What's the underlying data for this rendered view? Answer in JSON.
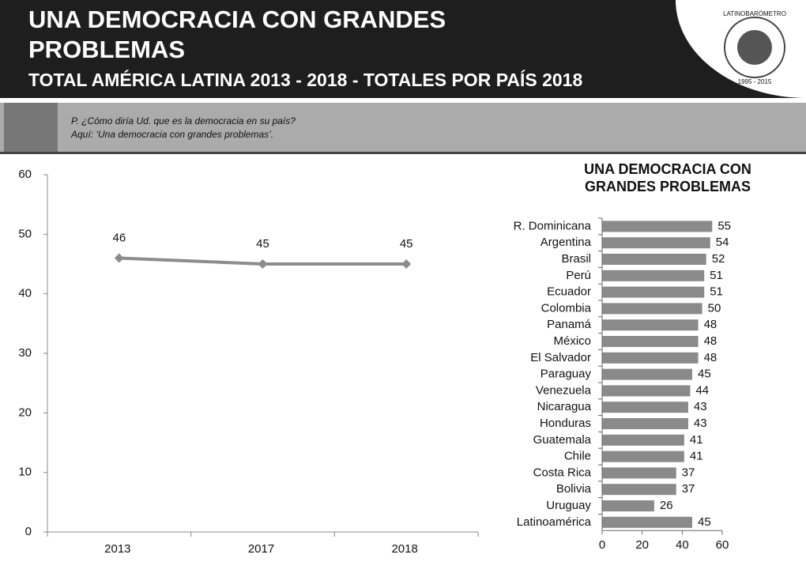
{
  "header": {
    "title": "UNA DEMOCRACIA CON GRANDES PROBLEMAS",
    "subtitle": "TOTAL AMÉRICA LATINA 2013 - 2018 - TOTALES POR PAÍS  2018",
    "logo": "LATINOBARÓMETRO",
    "logo_years": "1995 - 2015"
  },
  "question": [
    "P. ¿Cómo diría Ud. que es la democracia en su país?",
    "Aquí: ‘Una democracia con grandes problemas’."
  ],
  "chart_data": [
    {
      "type": "line",
      "categories": [
        "2013",
        "2017",
        "2018"
      ],
      "values": [
        46,
        45,
        45
      ],
      "color": "#8c8c8c",
      "ylim": [
        0,
        60
      ],
      "yticks": [
        0,
        10,
        20,
        30,
        40,
        50,
        60
      ]
    },
    {
      "type": "hbar",
      "title": "UNA DEMOCRACIA CON GRANDES PROBLEMAS",
      "categories": [
        "R. Dominicana",
        "Argentina",
        "Brasil",
        "Perú",
        "Ecuador",
        "Colombia",
        "Panamá",
        "México",
        "El Salvador",
        "Paraguay",
        "Venezuela",
        "Nicaragua",
        "Honduras",
        "Guatemala",
        "Chile",
        "Costa Rica",
        "Bolivia",
        "Uruguay",
        "Latinoamérica"
      ],
      "values": [
        55,
        54,
        52,
        51,
        51,
        50,
        48,
        48,
        48,
        45,
        44,
        43,
        43,
        41,
        41,
        37,
        37,
        26,
        45
      ],
      "color": "#8a8a8a",
      "xlim": [
        0,
        60
      ],
      "xticks": [
        0,
        20,
        40,
        60
      ]
    }
  ]
}
